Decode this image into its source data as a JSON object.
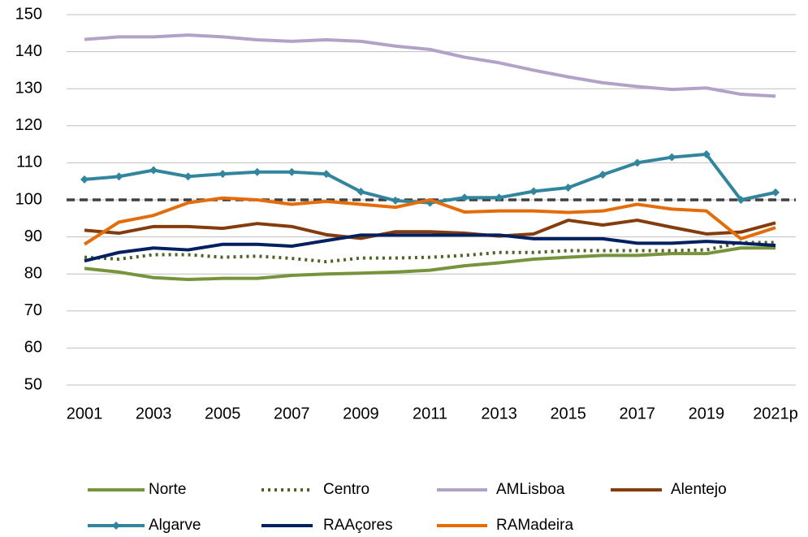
{
  "chart_data": {
    "type": "line",
    "categories": [
      "2001",
      null,
      "2003",
      null,
      "2005",
      null,
      "2007",
      null,
      "2009",
      null,
      "2011",
      null,
      "2013",
      null,
      "2015",
      null,
      "2017",
      null,
      "2019",
      null,
      "2021p"
    ],
    "ylim": [
      50,
      150
    ],
    "yticks": [
      50,
      60,
      70,
      80,
      90,
      100,
      110,
      120,
      130,
      140,
      150
    ],
    "grid": true,
    "reference_line": 100,
    "series": [
      {
        "name": "Norte",
        "color": "#77933c",
        "values": [
          81.5,
          80.5,
          79,
          78.5,
          78.8,
          78.8,
          79.6,
          80,
          80.2,
          80.5,
          81,
          82.2,
          83,
          84,
          84.5,
          85,
          85,
          85.5,
          85.5,
          87,
          87
        ]
      },
      {
        "name": "Centro",
        "color": "#4f6228",
        "dash": "dotted",
        "values": [
          84.5,
          84,
          85.2,
          85.2,
          84.5,
          84.8,
          84.2,
          83.3,
          84.3,
          84.3,
          84.5,
          85,
          85.8,
          85.8,
          86.3,
          86.3,
          86.3,
          86.3,
          86.5,
          88.5,
          88.5
        ]
      },
      {
        "name": "AMLisboa",
        "color": "#b3a2c7",
        "values": [
          143.3,
          144,
          144,
          144.5,
          144,
          143.2,
          142.8,
          143.2,
          142.8,
          141.5,
          140.6,
          138.5,
          137,
          135,
          133.2,
          131.6,
          130.6,
          129.8,
          130.2,
          128.5,
          128
        ]
      },
      {
        "name": "Alentejo",
        "color": "#843c0c",
        "values": [
          91.8,
          91,
          92.8,
          92.8,
          92.3,
          93.6,
          92.8,
          90.6,
          89.6,
          91.4,
          91.4,
          91,
          90.2,
          90.8,
          94.5,
          93.2,
          94.5,
          92.6,
          90.8,
          91.3,
          93.8
        ]
      },
      {
        "name": "Algarve",
        "color": "#31859c",
        "marker": "diamond",
        "values": [
          105.5,
          106.3,
          108,
          106.3,
          107,
          107.5,
          107.5,
          107,
          102.2,
          99.8,
          99.2,
          100.6,
          100.6,
          102.3,
          103.3,
          106.8,
          110,
          111.5,
          112.3,
          100,
          102
        ]
      },
      {
        "name": "RAAçores",
        "color": "#002060",
        "values": [
          83.5,
          85.8,
          87,
          86.5,
          88,
          88,
          87.5,
          89,
          90.5,
          90.5,
          90.5,
          90.5,
          90.5,
          89.5,
          89.5,
          89.5,
          88.3,
          88.3,
          88.8,
          88.3,
          87.7
        ]
      },
      {
        "name": "RAMadeira",
        "color": "#e46c0a",
        "values": [
          88,
          94,
          95.8,
          99.2,
          100.5,
          100,
          98.8,
          99.6,
          98.8,
          98,
          100,
          96.7,
          97,
          97,
          96.6,
          97,
          98.8,
          97.5,
          97,
          89.5,
          92.5
        ]
      }
    ]
  }
}
